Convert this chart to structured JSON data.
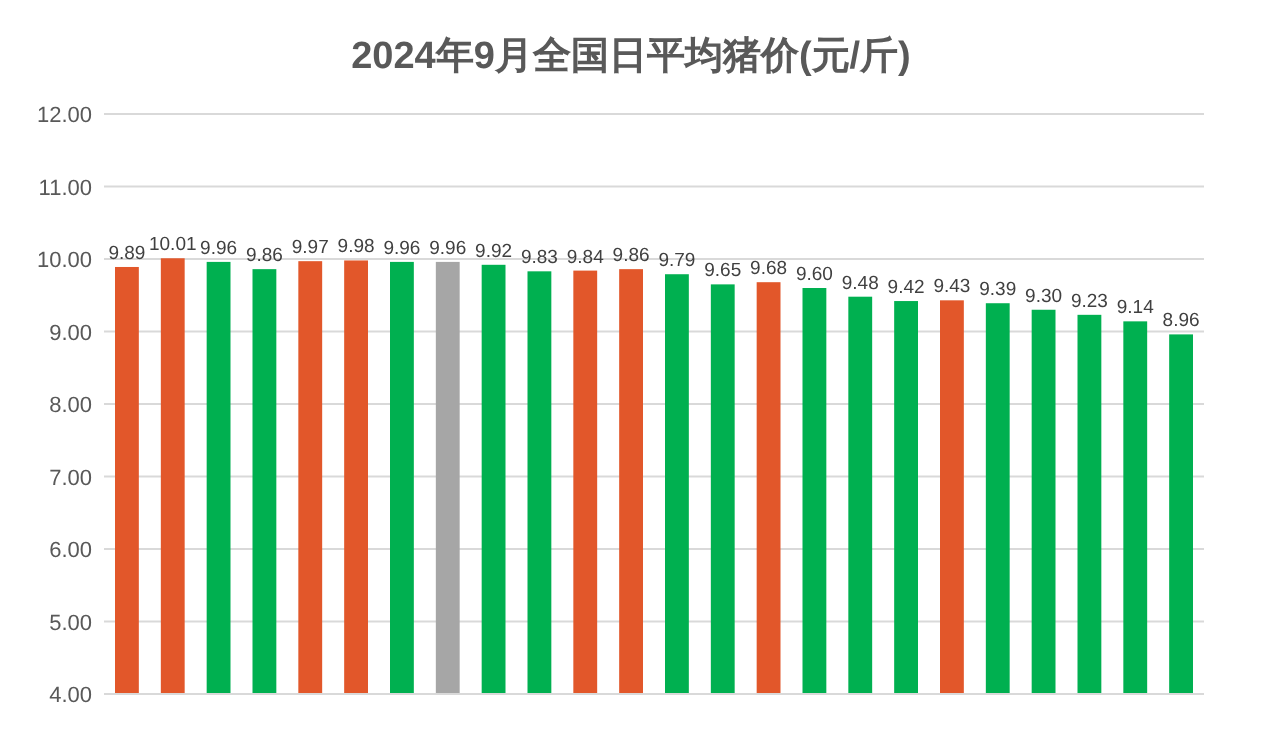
{
  "chart_data": {
    "type": "bar",
    "title": "2024年9月全国日平均猪价(元/斤)",
    "categories": [
      null,
      null,
      null,
      null,
      null,
      null,
      null,
      null,
      null,
      null,
      null,
      null,
      null,
      null,
      null,
      null,
      null,
      null,
      null,
      null,
      null,
      null,
      null,
      null
    ],
    "values": [
      9.89,
      10.01,
      9.96,
      9.86,
      9.97,
      9.98,
      9.96,
      9.96,
      9.92,
      9.83,
      9.84,
      9.86,
      9.79,
      9.65,
      9.68,
      9.6,
      9.48,
      9.42,
      9.43,
      9.39,
      9.3,
      9.23,
      9.14,
      8.96
    ],
    "colors": [
      "#e2572a",
      "#e2572a",
      "#00b050",
      "#00b050",
      "#e2572a",
      "#e2572a",
      "#00b050",
      "#a6a6a6",
      "#00b050",
      "#00b050",
      "#e2572a",
      "#e2572a",
      "#00b050",
      "#00b050",
      "#e2572a",
      "#00b050",
      "#00b050",
      "#00b050",
      "#e2572a",
      "#00b050",
      "#00b050",
      "#00b050",
      "#00b050",
      "#00b050"
    ],
    "ylim": [
      4,
      12
    ],
    "yticks": [
      {
        "value": 4,
        "label": "4.00"
      },
      {
        "value": 5,
        "label": "5.00"
      },
      {
        "value": 6,
        "label": "6.00"
      },
      {
        "value": 7,
        "label": "7.00"
      },
      {
        "value": 8,
        "label": "8.00"
      },
      {
        "value": 9,
        "label": "9.00"
      },
      {
        "value": 10,
        "label": "10.00"
      },
      {
        "value": 11,
        "label": "11.00"
      },
      {
        "value": 12,
        "label": "12.00"
      }
    ],
    "grid": "y",
    "value_labels": [
      "9.89",
      "10.01",
      "9.96",
      "9.86",
      "9.97",
      "9.98",
      "9.96",
      "9.96",
      "9.92",
      "9.83",
      "9.84",
      "9.86",
      "9.79",
      "9.65",
      "9.68",
      "9.60",
      "9.48",
      "9.42",
      "9.43",
      "9.39",
      "9.30",
      "9.23",
      "9.14",
      "8.96"
    ]
  }
}
